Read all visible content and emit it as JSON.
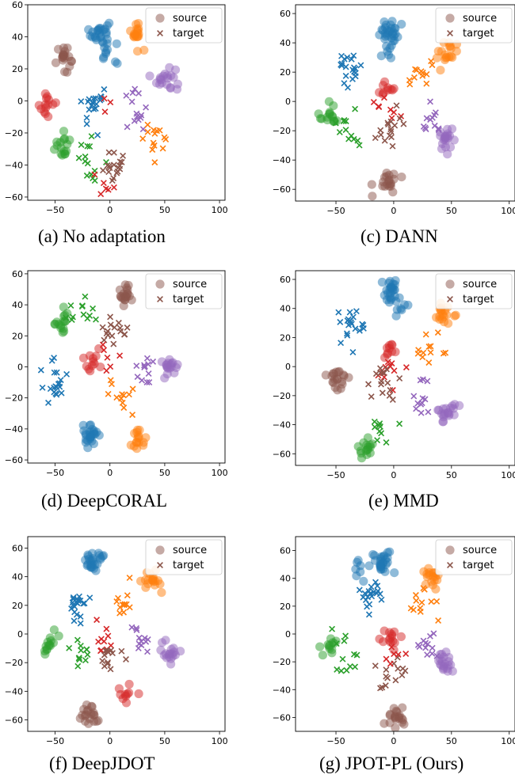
{
  "colors": {
    "class0": "#1f77b4",
    "class1": "#ff7f0e",
    "class2": "#2ca02c",
    "class3": "#d62728",
    "class4": "#9467bd",
    "class5": "#8c564b",
    "legend_marker": "#8c564b"
  },
  "legend": {
    "source": "source",
    "target": "target"
  },
  "chart_data": [
    {
      "type": "scatter",
      "title": "",
      "caption": "(a) No adaptation",
      "xlim": [
        -75,
        105
      ],
      "ylim": [
        -62,
        60
      ],
      "xticks": [
        -50,
        0,
        50,
        100
      ],
      "yticks": [
        -60,
        -40,
        -20,
        0,
        20,
        40,
        60
      ],
      "legend_position": "top-right",
      "clusters": [
        {
          "class": 0,
          "domain": "source",
          "x": -9,
          "y": 42,
          "n": 26
        },
        {
          "class": 0,
          "domain": "source",
          "x": -1,
          "y": 30,
          "n": 8
        },
        {
          "class": 1,
          "domain": "source",
          "x": 25,
          "y": 43,
          "n": 18
        },
        {
          "class": 5,
          "domain": "source",
          "x": -42,
          "y": 27,
          "n": 20
        },
        {
          "class": 4,
          "domain": "source",
          "x": 51,
          "y": 14,
          "n": 20
        },
        {
          "class": 3,
          "domain": "source",
          "x": -58,
          "y": -2,
          "n": 14
        },
        {
          "class": 2,
          "domain": "source",
          "x": -44,
          "y": -28,
          "n": 16
        },
        {
          "class": 0,
          "domain": "target",
          "x": -14,
          "y": -3,
          "n": 20
        },
        {
          "class": 4,
          "domain": "target",
          "x": 22,
          "y": -6,
          "n": 14
        },
        {
          "class": 1,
          "domain": "target",
          "x": 40,
          "y": -23,
          "n": 14
        },
        {
          "class": 2,
          "domain": "target",
          "x": -16,
          "y": -36,
          "n": 14
        },
        {
          "class": 5,
          "domain": "target",
          "x": 6,
          "y": -43,
          "n": 18
        },
        {
          "class": 3,
          "domain": "target",
          "x": -3,
          "y": -55,
          "n": 6
        },
        {
          "class": 3,
          "domain": "target",
          "x": -3,
          "y": -8,
          "n": 3
        }
      ]
    },
    {
      "type": "scatter",
      "title": "",
      "caption": "(c) DANN",
      "xlim": [
        -85,
        105
      ],
      "ylim": [
        -68,
        66
      ],
      "xticks": [
        -50,
        0,
        50,
        100
      ],
      "yticks": [
        -60,
        -40,
        -20,
        0,
        20,
        40,
        60
      ],
      "legend_position": "top-right",
      "clusters": [
        {
          "class": 0,
          "domain": "source",
          "x": -4,
          "y": 48,
          "n": 26
        },
        {
          "class": 0,
          "domain": "source",
          "x": -3,
          "y": 35,
          "n": 8
        },
        {
          "class": 1,
          "domain": "source",
          "x": 48,
          "y": 34,
          "n": 18
        },
        {
          "class": 3,
          "domain": "source",
          "x": -8,
          "y": 7,
          "n": 10
        },
        {
          "class": 2,
          "domain": "source",
          "x": -56,
          "y": -9,
          "n": 16
        },
        {
          "class": 4,
          "domain": "source",
          "x": 45,
          "y": -25,
          "n": 20
        },
        {
          "class": 5,
          "domain": "source",
          "x": -5,
          "y": -55,
          "n": 20
        },
        {
          "class": 0,
          "domain": "target",
          "x": -38,
          "y": 22,
          "n": 20
        },
        {
          "class": 1,
          "domain": "target",
          "x": 23,
          "y": 19,
          "n": 12
        },
        {
          "class": 3,
          "domain": "target",
          "x": -4,
          "y": -5,
          "n": 8
        },
        {
          "class": 2,
          "domain": "target",
          "x": -40,
          "y": -20,
          "n": 12
        },
        {
          "class": 5,
          "domain": "target",
          "x": -5,
          "y": -19,
          "n": 16
        },
        {
          "class": 4,
          "domain": "target",
          "x": 30,
          "y": -10,
          "n": 12
        }
      ]
    },
    {
      "type": "scatter",
      "title": "",
      "caption": "(d) DeepCORAL",
      "xlim": [
        -75,
        105
      ],
      "ylim": [
        -62,
        62
      ],
      "xticks": [
        -50,
        0,
        50,
        100
      ],
      "yticks": [
        -60,
        -40,
        -20,
        0,
        20,
        40,
        60
      ],
      "legend_position": "top-right",
      "clusters": [
        {
          "class": 5,
          "domain": "source",
          "x": 15,
          "y": 47,
          "n": 20
        },
        {
          "class": 2,
          "domain": "source",
          "x": -42,
          "y": 30,
          "n": 16
        },
        {
          "class": 3,
          "domain": "source",
          "x": -18,
          "y": 1,
          "n": 12
        },
        {
          "class": 4,
          "domain": "source",
          "x": 55,
          "y": 2,
          "n": 18
        },
        {
          "class": 0,
          "domain": "source",
          "x": -19,
          "y": -45,
          "n": 26
        },
        {
          "class": 1,
          "domain": "source",
          "x": 27,
          "y": -48,
          "n": 16
        },
        {
          "class": 2,
          "domain": "target",
          "x": -26,
          "y": 35,
          "n": 12
        },
        {
          "class": 5,
          "domain": "target",
          "x": 4,
          "y": 22,
          "n": 16
        },
        {
          "class": 0,
          "domain": "target",
          "x": -50,
          "y": -10,
          "n": 20
        },
        {
          "class": 4,
          "domain": "target",
          "x": 30,
          "y": 0,
          "n": 12
        },
        {
          "class": 3,
          "domain": "target",
          "x": 2,
          "y": 4,
          "n": 6
        },
        {
          "class": 1,
          "domain": "target",
          "x": 9,
          "y": -20,
          "n": 12
        }
      ]
    },
    {
      "type": "scatter",
      "title": "",
      "caption": "(e) MMD",
      "xlim": [
        -85,
        105
      ],
      "ylim": [
        -68,
        66
      ],
      "xticks": [
        -50,
        0,
        50,
        100
      ],
      "yticks": [
        -60,
        -40,
        -20,
        0,
        20,
        40,
        60
      ],
      "legend_position": "top-right",
      "clusters": [
        {
          "class": 0,
          "domain": "source",
          "x": -3,
          "y": 52,
          "n": 26
        },
        {
          "class": 0,
          "domain": "source",
          "x": 4,
          "y": 37,
          "n": 6
        },
        {
          "class": 1,
          "domain": "source",
          "x": 42,
          "y": 35,
          "n": 18
        },
        {
          "class": 3,
          "domain": "source",
          "x": -3,
          "y": 10,
          "n": 10
        },
        {
          "class": 5,
          "domain": "source",
          "x": -49,
          "y": -10,
          "n": 20
        },
        {
          "class": 4,
          "domain": "source",
          "x": 46,
          "y": -30,
          "n": 20
        },
        {
          "class": 2,
          "domain": "source",
          "x": -23,
          "y": -56,
          "n": 16
        },
        {
          "class": 0,
          "domain": "target",
          "x": -36,
          "y": 30,
          "n": 20
        },
        {
          "class": 1,
          "domain": "target",
          "x": 33,
          "y": 10,
          "n": 12
        },
        {
          "class": 3,
          "domain": "target",
          "x": -5,
          "y": -3,
          "n": 10
        },
        {
          "class": 5,
          "domain": "target",
          "x": -10,
          "y": -12,
          "n": 16
        },
        {
          "class": 4,
          "domain": "target",
          "x": 26,
          "y": -24,
          "n": 12
        },
        {
          "class": 2,
          "domain": "target",
          "x": -8,
          "y": -42,
          "n": 10
        }
      ]
    },
    {
      "type": "scatter",
      "title": "",
      "caption": "(f) DeepJDOT",
      "xlim": [
        -75,
        105
      ],
      "ylim": [
        -68,
        68
      ],
      "xticks": [
        -50,
        0,
        50,
        100
      ],
      "yticks": [
        -60,
        -40,
        -20,
        0,
        20,
        40,
        60
      ],
      "legend_position": "top-right",
      "clusters": [
        {
          "class": 0,
          "domain": "source",
          "x": -13,
          "y": 52,
          "n": 26
        },
        {
          "class": 1,
          "domain": "source",
          "x": 37,
          "y": 38,
          "n": 18
        },
        {
          "class": 2,
          "domain": "source",
          "x": -55,
          "y": -8,
          "n": 14
        },
        {
          "class": 4,
          "domain": "source",
          "x": 54,
          "y": -13,
          "n": 18
        },
        {
          "class": 3,
          "domain": "source",
          "x": 14,
          "y": -40,
          "n": 10
        },
        {
          "class": 5,
          "domain": "source",
          "x": -20,
          "y": -56,
          "n": 20
        },
        {
          "class": 0,
          "domain": "target",
          "x": -30,
          "y": 20,
          "n": 20
        },
        {
          "class": 1,
          "domain": "target",
          "x": 15,
          "y": 20,
          "n": 12
        },
        {
          "class": 3,
          "domain": "target",
          "x": -4,
          "y": -5,
          "n": 10
        },
        {
          "class": 2,
          "domain": "target",
          "x": -28,
          "y": -15,
          "n": 12
        },
        {
          "class": 5,
          "domain": "target",
          "x": -1,
          "y": -15,
          "n": 14
        },
        {
          "class": 4,
          "domain": "target",
          "x": 30,
          "y": -5,
          "n": 12
        }
      ]
    },
    {
      "type": "scatter",
      "title": "",
      "caption": "(g) JPOT-PL (Ours)",
      "xlim": [
        -85,
        105
      ],
      "ylim": [
        -70,
        70
      ],
      "xticks": [
        -50,
        0,
        50,
        100
      ],
      "yticks": [
        -60,
        -40,
        -20,
        0,
        20,
        40,
        60
      ],
      "legend_position": "top-right",
      "clusters": [
        {
          "class": 0,
          "domain": "source",
          "x": -10,
          "y": 52,
          "n": 26
        },
        {
          "class": 0,
          "domain": "source",
          "x": -30,
          "y": 47,
          "n": 8
        },
        {
          "class": 1,
          "domain": "source",
          "x": 33,
          "y": 42,
          "n": 18
        },
        {
          "class": 2,
          "domain": "source",
          "x": -57,
          "y": -9,
          "n": 12
        },
        {
          "class": 3,
          "domain": "source",
          "x": -4,
          "y": -3,
          "n": 14
        },
        {
          "class": 4,
          "domain": "source",
          "x": 43,
          "y": -20,
          "n": 20
        },
        {
          "class": 5,
          "domain": "source",
          "x": 1,
          "y": -60,
          "n": 20
        },
        {
          "class": 0,
          "domain": "target",
          "x": -20,
          "y": 25,
          "n": 20
        },
        {
          "class": 1,
          "domain": "target",
          "x": 25,
          "y": 23,
          "n": 12
        },
        {
          "class": 2,
          "domain": "target",
          "x": -40,
          "y": -18,
          "n": 12
        },
        {
          "class": 5,
          "domain": "target",
          "x": -4,
          "y": -27,
          "n": 14
        },
        {
          "class": 4,
          "domain": "target",
          "x": 30,
          "y": -8,
          "n": 12
        },
        {
          "class": 3,
          "domain": "target",
          "x": -2,
          "y": -11,
          "n": 6
        }
      ]
    }
  ]
}
